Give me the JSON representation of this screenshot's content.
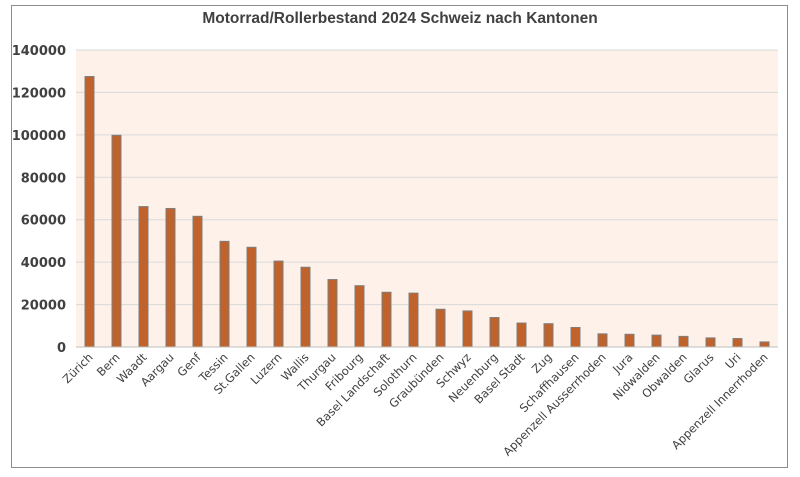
{
  "chart_data": {
    "type": "bar",
    "title": "Motorrad/Rollerbestand 2024 Schweiz nach Kantonen",
    "xlabel": "",
    "ylabel": "",
    "ylim": [
      0,
      140000
    ],
    "yticks": [
      0,
      20000,
      40000,
      60000,
      80000,
      100000,
      120000,
      140000
    ],
    "grid": true,
    "legend": "none",
    "colors": {
      "bar_fill": "#c0622b",
      "bar_stroke": "#7f7f7f",
      "plot_background": "#fdf1ea",
      "grid": "#d9d9d9",
      "text": "#404040"
    },
    "categories": [
      "Zürich",
      "Bern",
      "Waadt",
      "Aargau",
      "Genf",
      "Tessin",
      "St.Gallen",
      "Luzern",
      "Wallis",
      "Thurgau",
      "Fribourg",
      "Basel Landschaft",
      "Solothurn",
      "Graubünden",
      "Schwyz",
      "Neuenburg",
      "Basel Stadt",
      "Zug",
      "Schaffhausen",
      "Appenzell Ausserrhoden",
      "Jura",
      "Nidwalden",
      "Obwalden",
      "Glarus",
      "Uri",
      "Appenzell Innerrhoden"
    ],
    "values": [
      127500,
      99800,
      66200,
      65300,
      61600,
      49800,
      47000,
      40500,
      37600,
      31800,
      28900,
      25800,
      25400,
      17800,
      17000,
      13900,
      11300,
      11000,
      9200,
      6200,
      6000,
      5600,
      5000,
      4300,
      4000,
      2400
    ]
  }
}
